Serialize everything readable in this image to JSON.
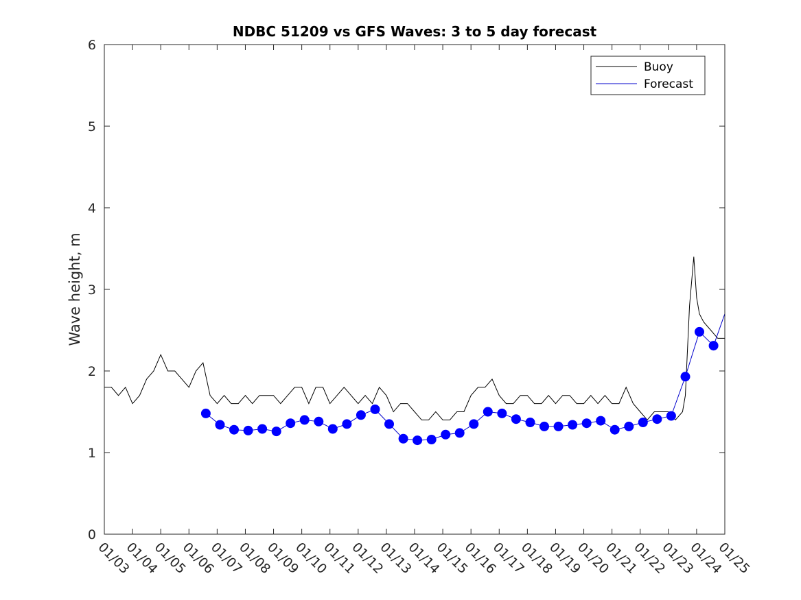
{
  "chart_data": {
    "type": "line",
    "title": "NDBC 51209 vs GFS Waves: 3 to 5 day forecast",
    "xlabel": "",
    "ylabel": "Wave height, m",
    "ylim": [
      0,
      6
    ],
    "xlim": [
      0,
      22
    ],
    "yticks": [
      0,
      1,
      2,
      3,
      4,
      5,
      6
    ],
    "xticks": [
      0,
      1,
      2,
      3,
      4,
      5,
      6,
      7,
      8,
      9,
      10,
      11,
      12,
      13,
      14,
      15,
      16,
      17,
      18,
      19,
      20,
      21,
      22
    ],
    "xtick_labels": [
      "01/03",
      "01/04",
      "01/05",
      "01/06",
      "01/07",
      "01/08",
      "01/09",
      "01/10",
      "01/11",
      "01/12",
      "01/13",
      "01/14",
      "01/15",
      "01/16",
      "01/17",
      "01/18",
      "01/19",
      "01/20",
      "01/21",
      "01/22",
      "01/23",
      "01/24",
      "01/25"
    ],
    "legend": {
      "position": "top-right",
      "entries": [
        "Buoy",
        "Forecast"
      ]
    },
    "series": [
      {
        "name": "Buoy",
        "color": "#000000",
        "x": [
          0.0,
          0.25,
          0.5,
          0.75,
          1.0,
          1.25,
          1.5,
          1.75,
          2.0,
          2.25,
          2.5,
          2.75,
          3.0,
          3.25,
          3.5,
          3.75,
          4.0,
          4.25,
          4.5,
          4.75,
          5.0,
          5.25,
          5.5,
          5.75,
          6.0,
          6.25,
          6.5,
          6.75,
          7.0,
          7.25,
          7.5,
          7.75,
          8.0,
          8.25,
          8.5,
          8.75,
          9.0,
          9.25,
          9.5,
          9.75,
          10.0,
          10.25,
          10.5,
          10.75,
          11.0,
          11.25,
          11.5,
          11.75,
          12.0,
          12.25,
          12.5,
          12.75,
          13.0,
          13.25,
          13.5,
          13.75,
          14.0,
          14.25,
          14.5,
          14.75,
          15.0,
          15.25,
          15.5,
          15.75,
          16.0,
          16.25,
          16.5,
          16.75,
          17.0,
          17.25,
          17.5,
          17.75,
          18.0,
          18.25,
          18.5,
          18.75,
          19.0,
          19.25,
          19.5,
          19.75,
          20.0,
          20.25,
          20.5,
          20.6,
          20.75,
          20.9,
          21.0,
          21.1,
          21.25,
          21.5,
          21.75,
          22.0
        ],
        "values": [
          1.8,
          1.8,
          1.7,
          1.8,
          1.6,
          1.7,
          1.9,
          2.0,
          2.2,
          2.0,
          2.0,
          1.9,
          1.8,
          2.0,
          2.1,
          1.7,
          1.6,
          1.7,
          1.6,
          1.6,
          1.7,
          1.6,
          1.7,
          1.7,
          1.7,
          1.6,
          1.7,
          1.8,
          1.8,
          1.6,
          1.8,
          1.8,
          1.6,
          1.7,
          1.8,
          1.7,
          1.6,
          1.7,
          1.6,
          1.8,
          1.7,
          1.5,
          1.6,
          1.6,
          1.5,
          1.4,
          1.4,
          1.5,
          1.4,
          1.4,
          1.5,
          1.5,
          1.7,
          1.8,
          1.8,
          1.9,
          1.7,
          1.6,
          1.6,
          1.7,
          1.7,
          1.6,
          1.6,
          1.7,
          1.6,
          1.7,
          1.7,
          1.6,
          1.6,
          1.7,
          1.6,
          1.7,
          1.6,
          1.6,
          1.8,
          1.6,
          1.5,
          1.4,
          1.5,
          1.5,
          1.5,
          1.4,
          1.5,
          1.7,
          2.8,
          3.4,
          2.9,
          2.7,
          2.6,
          2.5,
          2.4,
          2.4
        ]
      },
      {
        "name": "Forecast",
        "color": "#0000cc",
        "x": [
          3.6,
          4.1,
          4.6,
          5.1,
          5.6,
          6.1,
          6.6,
          7.1,
          7.6,
          8.1,
          8.6,
          9.1,
          9.6,
          10.1,
          10.6,
          11.1,
          11.6,
          12.1,
          12.6,
          13.1,
          13.6,
          14.1,
          14.6,
          15.1,
          15.6,
          16.1,
          16.6,
          17.1,
          17.6,
          18.1,
          18.6,
          19.1,
          19.6,
          20.1,
          20.6,
          21.1,
          21.6,
          22.0
        ],
        "values": [
          1.48,
          1.34,
          1.28,
          1.27,
          1.29,
          1.26,
          1.36,
          1.4,
          1.38,
          1.29,
          1.35,
          1.46,
          1.53,
          1.35,
          1.17,
          1.15,
          1.16,
          1.22,
          1.24,
          1.35,
          1.5,
          1.48,
          1.41,
          1.37,
          1.32,
          1.32,
          1.34,
          1.36,
          1.39,
          1.28,
          1.32,
          1.37,
          1.41,
          1.45,
          1.93,
          2.48,
          2.31,
          2.7
        ]
      }
    ]
  }
}
